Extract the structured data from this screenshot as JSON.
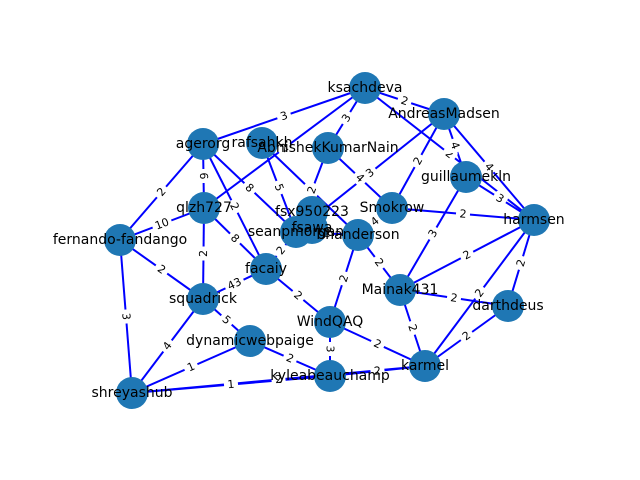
{
  "graph": {
    "node_color": "#1f77b4",
    "edge_color": "#0000ff",
    "label_color": "#000000",
    "nodes": [
      {
        "id": "ksachdeva",
        "label": "ksachdeva"
      },
      {
        "id": "AndreasMadsen",
        "label": "AndreasMadsen"
      },
      {
        "id": "agerorg",
        "label": "agerorg"
      },
      {
        "id": "rafsahkh",
        "label": "rafsahkh"
      },
      {
        "id": "AbhishekKumarNain",
        "label": "AbhishekKumarNain"
      },
      {
        "id": "guillaumekln",
        "label": "guillaumekln"
      },
      {
        "id": "qlzh727",
        "label": "qlzh727"
      },
      {
        "id": "Smokrow",
        "label": "Smokrow"
      },
      {
        "id": "fsx950223",
        "label": "fsx950223"
      },
      {
        "id": "harmsen",
        "label": "harmsen"
      },
      {
        "id": "fernando-fandango",
        "label": "fernando-fandango"
      },
      {
        "id": "seanpmorgan",
        "label": "seanpmorgan"
      },
      {
        "id": "WindQAQ_top",
        "label": "fsawa"
      },
      {
        "id": "bhanderson",
        "label": "bhanderson"
      },
      {
        "id": "facaiy",
        "label": "facaiy"
      },
      {
        "id": "Mainak431",
        "label": "Mainak431"
      },
      {
        "id": "squadrick",
        "label": "squadrick"
      },
      {
        "id": "darthdeus",
        "label": "darthdeus"
      },
      {
        "id": "WindQAQ",
        "label": "WindQAQ"
      },
      {
        "id": "dynamicwebpaige",
        "label": "dynamicwebpaige"
      },
      {
        "id": "karmel",
        "label": "karmel"
      },
      {
        "id": "kyleabeauchamp",
        "label": "kyleabeauchamp"
      },
      {
        "id": "shreyashub",
        "label": "shreyashub"
      }
    ],
    "edges": [
      {
        "s": "ksachdeva",
        "t": "agerorg",
        "w": "3"
      },
      {
        "s": "ksachdeva",
        "t": "AndreasMadsen",
        "w": "2"
      },
      {
        "s": "ksachdeva",
        "t": "AbhishekKumarNain",
        "w": "3"
      },
      {
        "s": "ksachdeva",
        "t": "qlzh727",
        "w": "2"
      },
      {
        "s": "ksachdeva",
        "t": "harmsen",
        "w": "2"
      },
      {
        "s": "AndreasMadsen",
        "t": "guillaumekln",
        "w": "4"
      },
      {
        "s": "AndreasMadsen",
        "t": "Smokrow",
        "w": "2"
      },
      {
        "s": "AndreasMadsen",
        "t": "harmsen",
        "w": "4"
      },
      {
        "s": "AndreasMadsen",
        "t": "seanpmorgan",
        "w": "3"
      },
      {
        "s": "agerorg",
        "t": "fernando-fandango",
        "w": "2"
      },
      {
        "s": "agerorg",
        "t": "qlzh727",
        "w": "6"
      },
      {
        "s": "agerorg",
        "t": "seanpmorgan",
        "w": "8"
      },
      {
        "s": "agerorg",
        "t": "facaiy",
        "w": "2"
      },
      {
        "s": "rafsahkh",
        "t": "bhanderson",
        "w": "4"
      },
      {
        "s": "rafsahkh",
        "t": "seanpmorgan",
        "w": "5"
      },
      {
        "s": "AbhishekKumarNain",
        "t": "seanpmorgan",
        "w": "2"
      },
      {
        "s": "AbhishekKumarNain",
        "t": "Smokrow",
        "w": "4"
      },
      {
        "s": "guillaumekln",
        "t": "harmsen",
        "w": "3"
      },
      {
        "s": "guillaumekln",
        "t": "Mainak431",
        "w": "3"
      },
      {
        "s": "qlzh727",
        "t": "fernando-fandango",
        "w": "10"
      },
      {
        "s": "qlzh727",
        "t": "facaiy",
        "w": "8"
      },
      {
        "s": "qlzh727",
        "t": "squadrick",
        "w": "2"
      },
      {
        "s": "Smokrow",
        "t": "bhanderson",
        "w": "4"
      },
      {
        "s": "Smokrow",
        "t": "harmsen",
        "w": "2"
      },
      {
        "s": "harmsen",
        "t": "darthdeus",
        "w": "2"
      },
      {
        "s": "harmsen",
        "t": "Mainak431",
        "w": "2"
      },
      {
        "s": "harmsen",
        "t": "karmel",
        "w": "2"
      },
      {
        "s": "fernando-fandango",
        "t": "shreyashub",
        "w": "3"
      },
      {
        "s": "fernando-fandango",
        "t": "squadrick",
        "w": "2"
      },
      {
        "s": "seanpmorgan",
        "t": "facaiy",
        "w": "2"
      },
      {
        "s": "seanpmorgan",
        "t": "bhanderson",
        "w": "2"
      },
      {
        "s": "bhanderson",
        "t": "Mainak431",
        "w": "2"
      },
      {
        "s": "bhanderson",
        "t": "WindQAQ",
        "w": "2"
      },
      {
        "s": "facaiy",
        "t": "squadrick",
        "w": "43"
      },
      {
        "s": "facaiy",
        "t": "WindQAQ",
        "w": "2"
      },
      {
        "s": "Mainak431",
        "t": "karmel",
        "w": "2"
      },
      {
        "s": "Mainak431",
        "t": "darthdeus",
        "w": "2"
      },
      {
        "s": "squadrick",
        "t": "shreyashub",
        "w": "4"
      },
      {
        "s": "squadrick",
        "t": "dynamicwebpaige",
        "w": "5"
      },
      {
        "s": "darthdeus",
        "t": "karmel",
        "w": "2"
      },
      {
        "s": "WindQAQ",
        "t": "karmel",
        "w": "2"
      },
      {
        "s": "WindQAQ",
        "t": "kyleabeauchamp",
        "w": "3"
      },
      {
        "s": "dynamicwebpaige",
        "t": "kyleabeauchamp",
        "w": "2"
      },
      {
        "s": "dynamicwebpaige",
        "t": "shreyashub",
        "w": "1"
      },
      {
        "s": "kyleabeauchamp",
        "t": "shreyashub",
        "w": "1"
      },
      {
        "s": "kyleabeauchamp",
        "t": "karmel",
        "w": "2"
      },
      {
        "s": "karmel",
        "t": "shreyashub",
        "w": "2"
      }
    ]
  }
}
